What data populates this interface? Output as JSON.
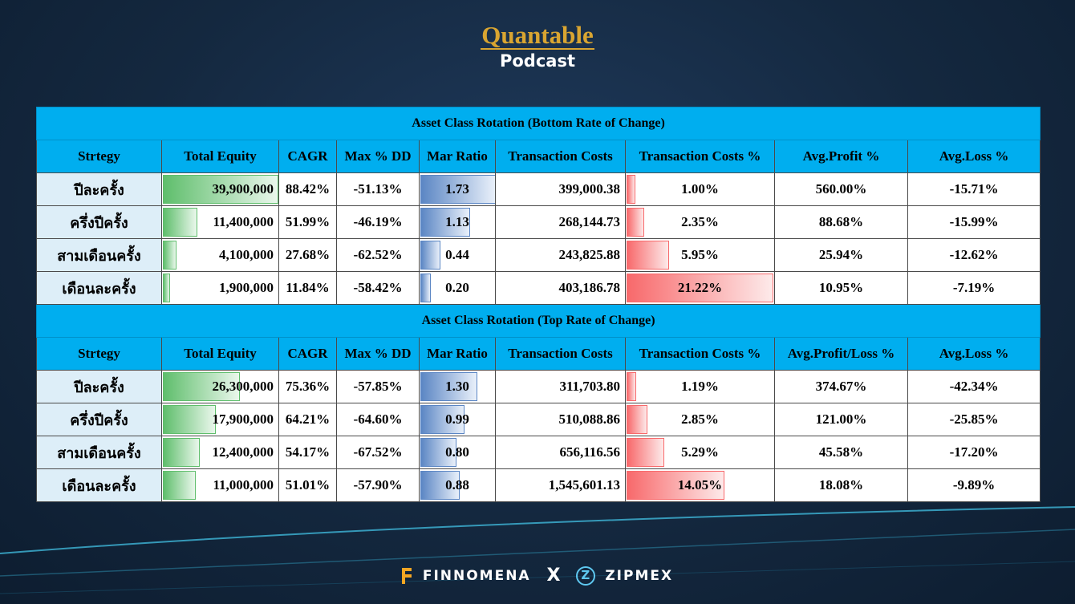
{
  "header": {
    "brand": "Quantable",
    "subtitle": "Podcast"
  },
  "tables": [
    {
      "title": "Asset Class Rotation (Bottom Rate of Change)",
      "columns": [
        "Strtegy",
        "Total Equity",
        "CAGR",
        "Max % DD",
        "Mar Ratio",
        "Transaction Costs",
        "Transaction Costs %",
        "Avg.Profit %",
        "Avg.Loss %"
      ],
      "rows": [
        {
          "strategy": "ปีละครั้ง",
          "total_equity": "39,900,000",
          "cagr": "88.42%",
          "max_dd": "-51.13%",
          "mar_ratio": "1.73",
          "tx_costs": "399,000.38",
          "tx_costs_pct": "1.00%",
          "avg_profit": "560.00%",
          "avg_loss": "-15.71%"
        },
        {
          "strategy": "ครึ่งปีครั้ง",
          "total_equity": "11,400,000",
          "cagr": "51.99%",
          "max_dd": "-46.19%",
          "mar_ratio": "1.13",
          "tx_costs": "268,144.73",
          "tx_costs_pct": "2.35%",
          "avg_profit": "88.68%",
          "avg_loss": "-15.99%"
        },
        {
          "strategy": "สามเดือนครั้ง",
          "total_equity": "4,100,000",
          "cagr": "27.68%",
          "max_dd": "-62.52%",
          "mar_ratio": "0.44",
          "tx_costs": "243,825.88",
          "tx_costs_pct": "5.95%",
          "avg_profit": "25.94%",
          "avg_loss": "-12.62%"
        },
        {
          "strategy": "เดือนละครั้ง",
          "total_equity": "1,900,000",
          "cagr": "11.84%",
          "max_dd": "-58.42%",
          "mar_ratio": "0.20",
          "tx_costs": "403,186.78",
          "tx_costs_pct": "21.22%",
          "avg_profit": "10.95%",
          "avg_loss": "-7.19%"
        }
      ]
    },
    {
      "title": "Asset Class Rotation (Top Rate of Change)",
      "columns": [
        "Strtegy",
        "Total Equity",
        "CAGR",
        "Max % DD",
        "Mar Ratio",
        "Transaction Costs",
        "Transaction Costs %",
        "Avg.Profit/Loss %",
        "Avg.Loss %"
      ],
      "rows": [
        {
          "strategy": "ปีละครั้ง",
          "total_equity": "26,300,000",
          "cagr": "75.36%",
          "max_dd": "-57.85%",
          "mar_ratio": "1.30",
          "tx_costs": "311,703.80",
          "tx_costs_pct": "1.19%",
          "avg_profit": "374.67%",
          "avg_loss": "-42.34%"
        },
        {
          "strategy": "ครึ่งปีครั้ง",
          "total_equity": "17,900,000",
          "cagr": "64.21%",
          "max_dd": "-64.60%",
          "mar_ratio": "0.99",
          "tx_costs": "510,088.86",
          "tx_costs_pct": "2.85%",
          "avg_profit": "121.00%",
          "avg_loss": "-25.85%"
        },
        {
          "strategy": "สามเดือนครั้ง",
          "total_equity": "12,400,000",
          "cagr": "54.17%",
          "max_dd": "-67.52%",
          "mar_ratio": "0.80",
          "tx_costs": "656,116.56",
          "tx_costs_pct": "5.29%",
          "avg_profit": "45.58%",
          "avg_loss": "-17.20%"
        },
        {
          "strategy": "เดือนละครั้ง",
          "total_equity": "11,000,000",
          "cagr": "51.01%",
          "max_dd": "-57.90%",
          "mar_ratio": "0.88",
          "tx_costs": "1,545,601.13",
          "tx_costs_pct": "14.05%",
          "avg_profit": "18.08%",
          "avg_loss": "-9.89%"
        }
      ]
    }
  ],
  "databar_scale": {
    "total_equity_max": 39900000,
    "mar_ratio_max": 1.73,
    "tx_costs_pct_max": 21.22
  },
  "footer": {
    "left": "FINNOMENA",
    "sep": "X",
    "right": "ZIPMEX"
  },
  "colors": {
    "header_bg": "#00aeef",
    "row_label_bg": "#ddeef8",
    "brand": "#d9a531",
    "bar_green": "#5fbe6c",
    "bar_blue": "#5b86c4",
    "bar_red": "#f8696b"
  }
}
